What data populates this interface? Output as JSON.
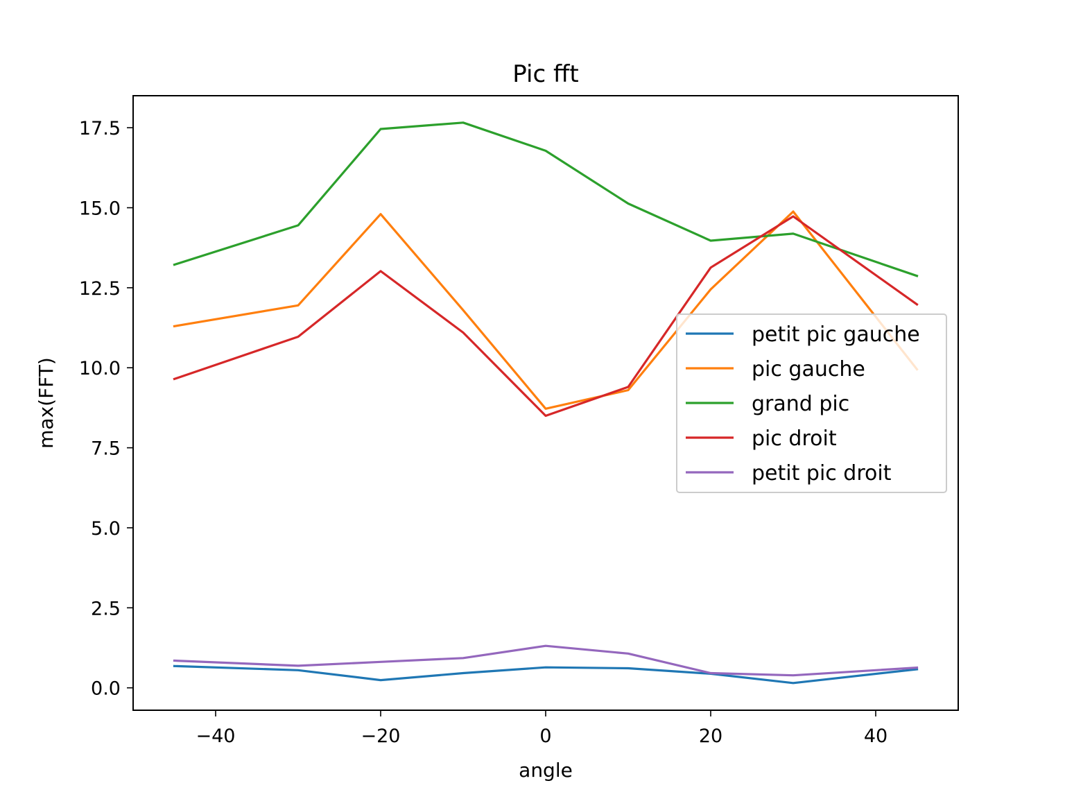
{
  "chart_data": {
    "type": "line",
    "title": "Pic fft",
    "xlabel": "angle",
    "ylabel": "max(FFT)",
    "xlim": [
      -50,
      50
    ],
    "ylim": [
      -0.7,
      18.5
    ],
    "x_ticks": [
      -40,
      -20,
      0,
      20,
      40
    ],
    "x_tick_labels": [
      "−40",
      "−20",
      "0",
      "20",
      "40"
    ],
    "y_ticks": [
      0.0,
      2.5,
      5.0,
      7.5,
      10.0,
      12.5,
      15.0,
      17.5
    ],
    "y_tick_labels": [
      "0.0",
      "2.5",
      "5.0",
      "7.5",
      "10.0",
      "12.5",
      "15.0",
      "17.5"
    ],
    "grid": false,
    "legend_position": "center-right",
    "x": [
      -45,
      -30,
      -20,
      -10,
      0,
      10,
      20,
      30,
      45
    ],
    "series": [
      {
        "name": "petit pic gauche",
        "color": "#1f77b4",
        "values": [
          0.68,
          0.55,
          0.24,
          0.46,
          0.64,
          0.61,
          0.44,
          0.15,
          0.58
        ]
      },
      {
        "name": "pic gauche",
        "color": "#ff7f0e",
        "values": [
          11.3,
          11.95,
          14.8,
          11.8,
          8.72,
          9.3,
          12.45,
          14.88,
          9.95
        ]
      },
      {
        "name": "grand pic",
        "color": "#2ca02c",
        "values": [
          13.22,
          14.45,
          17.46,
          17.66,
          16.78,
          15.13,
          13.97,
          14.19,
          12.87
        ]
      },
      {
        "name": "pic droit",
        "color": "#d62728",
        "values": [
          9.65,
          10.97,
          13.02,
          11.1,
          8.5,
          9.4,
          13.13,
          14.73,
          11.98
        ]
      },
      {
        "name": "petit pic droit",
        "color": "#9467bd",
        "values": [
          0.85,
          0.69,
          0.81,
          0.93,
          1.31,
          1.07,
          0.46,
          0.39,
          0.63
        ]
      }
    ]
  }
}
